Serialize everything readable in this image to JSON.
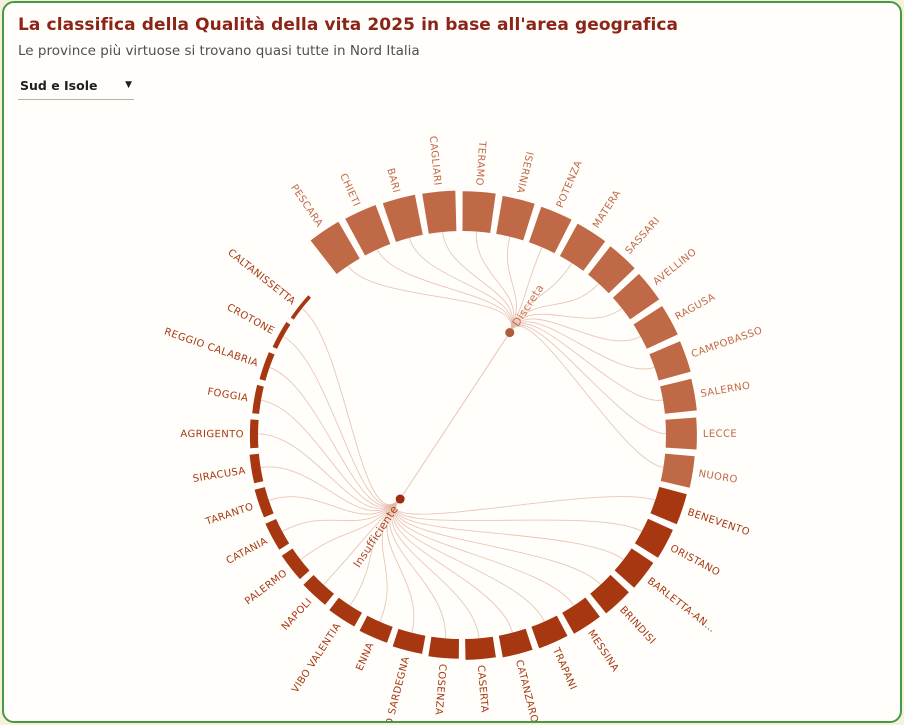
{
  "card": {
    "border_color": "#479a44",
    "background": "#fffefb"
  },
  "header": {
    "title": "La classifica della Qualità della vita 2025 in base all'area geografica",
    "subtitle": "Le province più virtuose si trovano quasi tutte in Nord Italia"
  },
  "filter": {
    "selected": "Sud e Isole",
    "caret": "▼"
  },
  "chart_data": {
    "type": "bar",
    "subtype": "radial-bars-with-dendrogram-links",
    "title": "La classifica della Qualità della vita 2025 in base all'area geografica",
    "legend_position": "center-nodes",
    "grid": false,
    "value_note": "bar length = relative quality-of-life score, visually estimated (no numeric axis shown)",
    "ylim": [
      0,
      100
    ],
    "groups": [
      {
        "name": "Discreta",
        "color": "#bf6947",
        "dot_color": "#b05c3a",
        "node_radius": 113,
        "node_angle_deg": 25
      },
      {
        "name": "Insufficiente",
        "color": "#a63710",
        "dot_color": "#9f2c0d",
        "node_radius": 89,
        "node_angle_deg": 224
      }
    ],
    "link_color": "#e4b8a6",
    "categories": [
      "PESCARA",
      "CHIETI",
      "BARI",
      "CAGLIARI",
      "TERAMO",
      "ISERNIA",
      "POTENZA",
      "MATERA",
      "SASSARI",
      "AVELLINO",
      "RAGUSA",
      "CAMPOBASSO",
      "SALERNO",
      "LECCE",
      "NUORO",
      "BENEVENTO",
      "ORISTANO",
      "BARLETTA-AN…",
      "BRINDISI",
      "MESSINA",
      "TRAPANI",
      "CATANZARO",
      "CASERTA",
      "COSENZA",
      "SUD SARDEGNA",
      "ENNA",
      "VIBO VALENTIA",
      "NAPOLI",
      "PALERMO",
      "CATANIA",
      "TARANTO",
      "SIRACUSA",
      "AGRIGENTO",
      "FOGGIA",
      "REGGIO CALABRIA",
      "CROTONE",
      "CALTANISSETTA"
    ],
    "provinces": [
      {
        "label": "PESCARA",
        "group": "Discreta",
        "value": 100
      },
      {
        "label": "CHIETI",
        "group": "Discreta",
        "value": 98
      },
      {
        "label": "BARI",
        "group": "Discreta",
        "value": 96
      },
      {
        "label": "CAGLIARI",
        "group": "Discreta",
        "value": 95
      },
      {
        "label": "TERAMO",
        "group": "Discreta",
        "value": 93
      },
      {
        "label": "ISERNIA",
        "group": "Discreta",
        "value": 90
      },
      {
        "label": "POTENZA",
        "group": "Discreta",
        "value": 88
      },
      {
        "label": "MATERA",
        "group": "Discreta",
        "value": 86
      },
      {
        "label": "SASSARI",
        "group": "Discreta",
        "value": 84
      },
      {
        "label": "AVELLINO",
        "group": "Discreta",
        "value": 82
      },
      {
        "label": "RAGUSA",
        "group": "Discreta",
        "value": 79
      },
      {
        "label": "CAMPOBASSO",
        "group": "Discreta",
        "value": 77
      },
      {
        "label": "SALERNO",
        "group": "Discreta",
        "value": 74
      },
      {
        "label": "LECCE",
        "group": "Discreta",
        "value": 71
      },
      {
        "label": "NUORO",
        "group": "Discreta",
        "value": 68
      },
      {
        "label": "BENEVENTO",
        "group": "Insufficiente",
        "value": 65
      },
      {
        "label": "ORISTANO",
        "group": "Insufficiente",
        "value": 62
      },
      {
        "label": "BARLETTA-AN…",
        "group": "Insufficiente",
        "value": 59
      },
      {
        "label": "BRINDISI",
        "group": "Insufficiente",
        "value": 57
      },
      {
        "label": "MESSINA",
        "group": "Insufficiente",
        "value": 54
      },
      {
        "label": "TRAPANI",
        "group": "Insufficiente",
        "value": 51
      },
      {
        "label": "CATANZARO",
        "group": "Insufficiente",
        "value": 49
      },
      {
        "label": "CASERTA",
        "group": "Insufficiente",
        "value": 46
      },
      {
        "label": "COSENZA",
        "group": "Insufficiente",
        "value": 43
      },
      {
        "label": "SUD SARDEGNA",
        "group": "Insufficiente",
        "value": 40
      },
      {
        "label": "ENNA",
        "group": "Insufficiente",
        "value": 36
      },
      {
        "label": "VIBO VALENTIA",
        "group": "Insufficiente",
        "value": 33
      },
      {
        "label": "NAPOLI",
        "group": "Insufficiente",
        "value": 29
      },
      {
        "label": "PALERMO",
        "group": "Insufficiente",
        "value": 26
      },
      {
        "label": "CATANIA",
        "group": "Insufficiente",
        "value": 23
      },
      {
        "label": "TARANTO",
        "group": "Insufficiente",
        "value": 20
      },
      {
        "label": "SIRACUSA",
        "group": "Insufficiente",
        "value": 17
      },
      {
        "label": "AGRIGENTO",
        "group": "Insufficiente",
        "value": 14
      },
      {
        "label": "FOGGIA",
        "group": "Insufficiente",
        "value": 11
      },
      {
        "label": "REGGIO CALABRIA",
        "group": "Insufficiente",
        "value": 9
      },
      {
        "label": "CROTONE",
        "group": "Insufficiente",
        "value": 6
      },
      {
        "label": "CALTANISSETTA",
        "group": "Insufficiente",
        "value": 3
      }
    ]
  }
}
